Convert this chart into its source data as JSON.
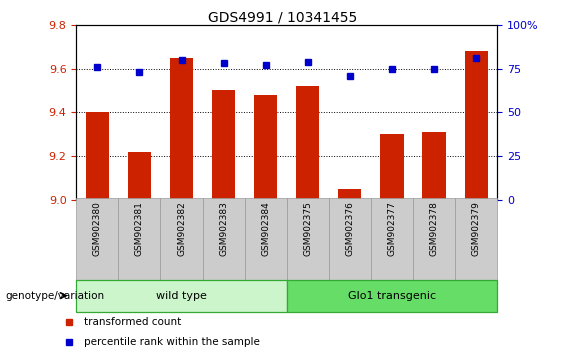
{
  "title": "GDS4991 / 10341455",
  "samples": [
    "GSM902380",
    "GSM902381",
    "GSM902382",
    "GSM902383",
    "GSM902384",
    "GSM902375",
    "GSM902376",
    "GSM902377",
    "GSM902378",
    "GSM902379"
  ],
  "red_values": [
    9.4,
    9.22,
    9.65,
    9.5,
    9.48,
    9.52,
    9.05,
    9.3,
    9.31,
    9.68
  ],
  "blue_values": [
    76,
    73,
    80,
    78,
    77,
    79,
    71,
    75,
    75,
    81
  ],
  "ylim_left": [
    9.0,
    9.8
  ],
  "ylim_right": [
    0,
    100
  ],
  "yticks_left": [
    9.0,
    9.2,
    9.4,
    9.6,
    9.8
  ],
  "ytick_labels_right": [
    "0",
    "25",
    "50",
    "75",
    "100%"
  ],
  "ytick_vals_right": [
    0,
    25,
    50,
    75,
    100
  ],
  "groups": [
    {
      "label": "wild type",
      "start": 0,
      "end": 5,
      "color": "#ccf5cc"
    },
    {
      "label": "Glo1 transgenic",
      "start": 5,
      "end": 10,
      "color": "#66dd66"
    }
  ],
  "group_row_label": "genotype/variation",
  "legend_items": [
    {
      "color": "#cc2200",
      "marker": "s",
      "label": "transformed count"
    },
    {
      "color": "#0000cc",
      "marker": "s",
      "label": "percentile rank within the sample"
    }
  ],
  "bar_color": "#cc2200",
  "dot_color": "#0000cc",
  "bar_width": 0.55,
  "bg_plot": "#ffffff",
  "xtick_bg": "#cccccc",
  "xtick_border": "#999999",
  "spine_color": "#000000"
}
